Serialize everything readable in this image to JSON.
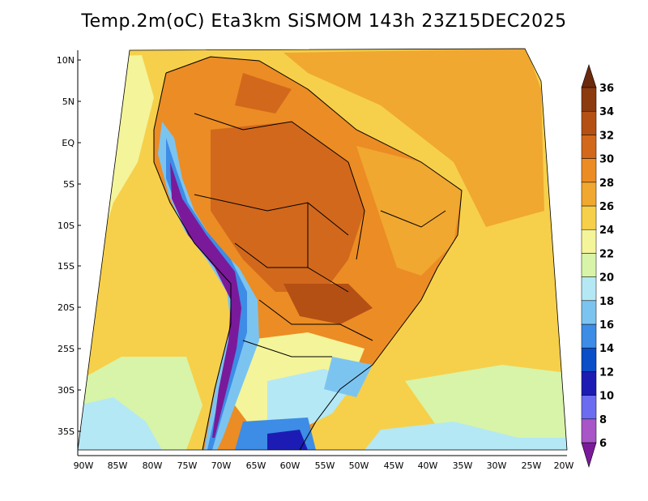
{
  "title": "Temp.2m(oC) Eta3km SiSMOM 143h 23Z15DEC2025",
  "lat_labels": [
    "10N",
    "5N",
    "EQ",
    "5S",
    "10S",
    "15S",
    "20S",
    "25S",
    "30S",
    "35S"
  ],
  "lon_labels": [
    "90W",
    "85W",
    "80W",
    "75W",
    "70W",
    "65W",
    "60W",
    "55W",
    "50W",
    "45W",
    "40W",
    "35W",
    "30W",
    "25W",
    "20W"
  ],
  "colorbar": {
    "labels": [
      "6",
      "8",
      "10",
      "12",
      "14",
      "16",
      "18",
      "20",
      "22",
      "24",
      "26",
      "28",
      "30",
      "32",
      "34",
      "36"
    ],
    "colors": [
      "#7a1a9a",
      "#a855c8",
      "#6c6cf0",
      "#1c1cb4",
      "#0a4ec8",
      "#3d8ce6",
      "#7cc4f0",
      "#b4e8f4",
      "#d8f4a8",
      "#f4f49a",
      "#f6d04a",
      "#f0a830",
      "#ec8c24",
      "#d2681c",
      "#b45014",
      "#8c3a10",
      "#6b2a0c"
    ]
  },
  "legend_colors": {
    "ocean": "#f6d04a",
    "land_warm": "#ec8c24",
    "land_hot": "#c8601a",
    "andes_cold": "#7a1a9a"
  }
}
